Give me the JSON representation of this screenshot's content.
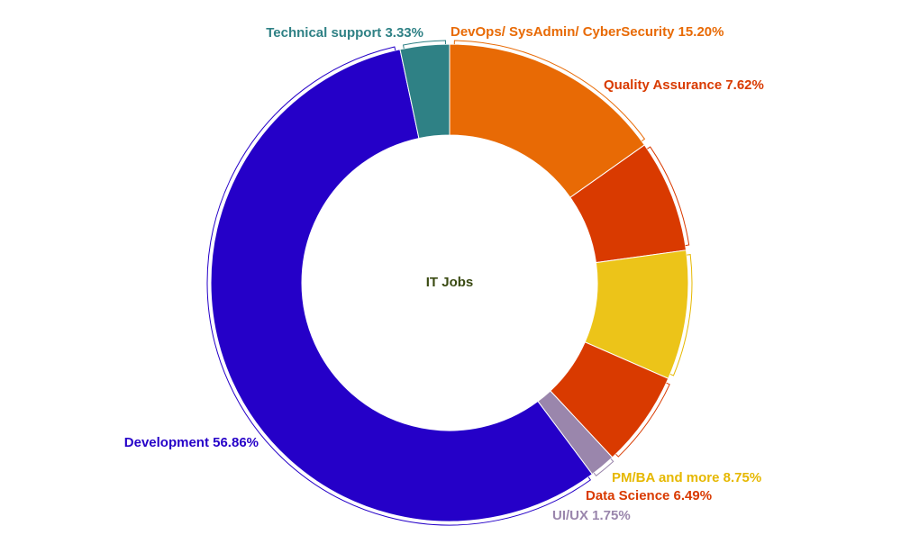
{
  "chart_data": {
    "type": "pie",
    "title": "IT Jobs",
    "categories": [
      "DevOps/ SysAdmin/ CyberSecurity",
      "Quality Assurance",
      "PM/BA and more",
      "Data Science",
      "UI/UX",
      "Development",
      "Technical support"
    ],
    "values": [
      15.2,
      7.62,
      8.75,
      6.49,
      1.75,
      56.86,
      3.33
    ],
    "labels": [
      "DevOps/ SysAdmin/ CyberSecurity 15.20%",
      "Quality Assurance 7.62%",
      "PM/BA and more 8.75%",
      "Data Science 6.49%",
      "UI/UX 1.75%",
      "Development 56.86%",
      "Technical support 3.33%"
    ],
    "colors": [
      "#e86a05",
      "#d93a00",
      "#ecc419",
      "#d93a00",
      "#9a86ac",
      "#2500c8",
      "#2f8185"
    ],
    "label_colors": [
      "#e86a05",
      "#d93a00",
      "#e6b800",
      "#d93a00",
      "#9a86ac",
      "#2500c8",
      "#2f8185"
    ],
    "donut": true,
    "legend": "none"
  }
}
